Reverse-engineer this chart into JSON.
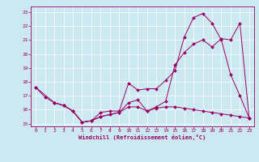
{
  "xlabel": "Windchill (Refroidissement éolien,°C)",
  "bg_color": "#cce8f0",
  "line_color": "#990066",
  "xlim": [
    -0.5,
    23.5
  ],
  "ylim": [
    14.8,
    23.4
  ],
  "xticks": [
    0,
    1,
    2,
    3,
    4,
    5,
    6,
    7,
    8,
    9,
    10,
    11,
    12,
    13,
    14,
    15,
    16,
    17,
    18,
    19,
    20,
    21,
    22,
    23
  ],
  "yticks": [
    15,
    16,
    17,
    18,
    19,
    20,
    21,
    22,
    23
  ],
  "line1_x": [
    0,
    1,
    2,
    3,
    4,
    5,
    6,
    7,
    8,
    9,
    10,
    11,
    12,
    13,
    14,
    15,
    16,
    17,
    18,
    19,
    20,
    21,
    22,
    23
  ],
  "line1_y": [
    17.6,
    16.9,
    16.5,
    16.3,
    15.9,
    15.1,
    15.2,
    15.8,
    15.9,
    15.9,
    17.9,
    17.4,
    17.5,
    17.5,
    18.1,
    18.8,
    21.2,
    22.6,
    22.9,
    22.2,
    21.0,
    18.5,
    17.0,
    15.4
  ],
  "line2_x": [
    0,
    2,
    3,
    4,
    5,
    6,
    7,
    8,
    9,
    10,
    11,
    12,
    13,
    14,
    15,
    16,
    17,
    18,
    19,
    20,
    21,
    22,
    23
  ],
  "line2_y": [
    17.6,
    16.5,
    16.3,
    15.9,
    15.1,
    15.2,
    15.5,
    15.65,
    15.8,
    16.5,
    16.7,
    15.9,
    16.2,
    16.6,
    19.2,
    20.1,
    20.7,
    21.0,
    20.5,
    21.1,
    21.0,
    22.2,
    15.4
  ],
  "line3_x": [
    2,
    3,
    4,
    5,
    6,
    7,
    8,
    9,
    10,
    11,
    12,
    13,
    14,
    15,
    16,
    17,
    18,
    19,
    20,
    21,
    22,
    23
  ],
  "line3_y": [
    16.5,
    16.3,
    15.9,
    15.1,
    15.2,
    15.5,
    15.65,
    15.8,
    16.2,
    16.2,
    15.9,
    16.1,
    16.2,
    16.2,
    16.1,
    16.0,
    15.9,
    15.8,
    15.7,
    15.6,
    15.5,
    15.4
  ]
}
